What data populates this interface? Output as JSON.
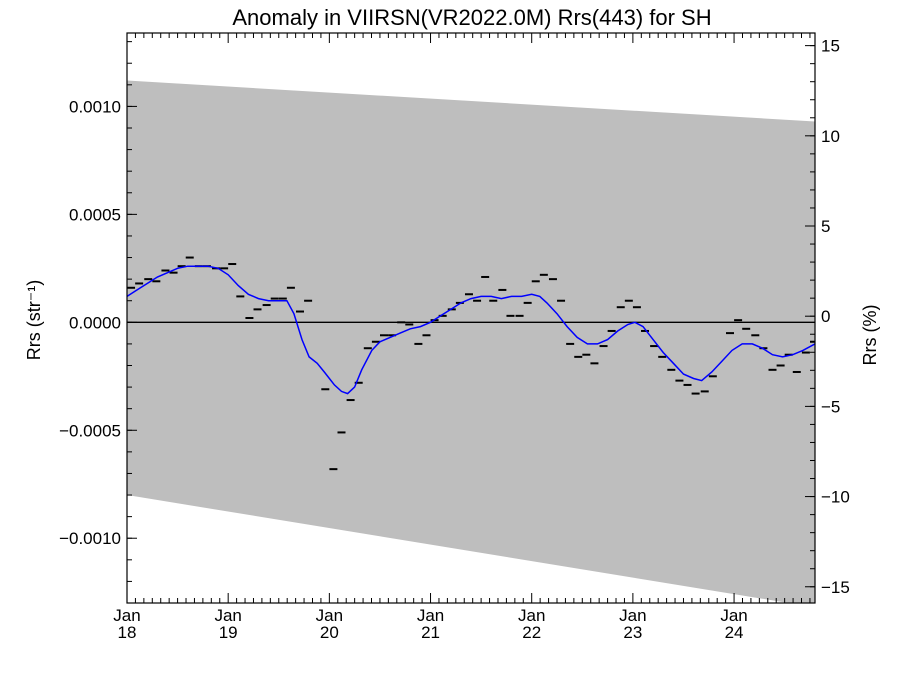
{
  "chart_data": {
    "type": "line",
    "title": "Anomaly in VIIRSN(VR2022.0M) Rrs(443) for SH",
    "ylabel": "Rrs (str⁻¹)",
    "y2label": "Rrs (%)",
    "x_range": [
      2018.0,
      2024.8
    ],
    "ylim": [
      -0.0013,
      0.00134
    ],
    "y2lim": [
      -15.9,
      15.7
    ],
    "y_ticks": [
      {
        "value": 0.001,
        "label": "0.0010"
      },
      {
        "value": 0.0005,
        "label": "0.0005"
      },
      {
        "value": 0.0,
        "label": "0.0000"
      },
      {
        "value": -0.0005,
        "label": "−0.0005"
      },
      {
        "value": -0.001,
        "label": "−0.0010"
      }
    ],
    "y2_ticks": [
      {
        "value": 15,
        "label": "15"
      },
      {
        "value": 10,
        "label": "10"
      },
      {
        "value": 5,
        "label": "5"
      },
      {
        "value": 0,
        "label": "0"
      },
      {
        "value": -5,
        "label": "−5"
      },
      {
        "value": -10,
        "label": "−10"
      },
      {
        "value": -15,
        "label": "−15"
      }
    ],
    "x_ticks": [
      {
        "value": 2018.0,
        "month": "Jan",
        "year": "18"
      },
      {
        "value": 2019.0,
        "month": "Jan",
        "year": "19"
      },
      {
        "value": 2020.0,
        "month": "Jan",
        "year": "20"
      },
      {
        "value": 2021.0,
        "month": "Jan",
        "year": "21"
      },
      {
        "value": 2022.0,
        "month": "Jan",
        "year": "22"
      },
      {
        "value": 2023.0,
        "month": "Jan",
        "year": "23"
      },
      {
        "value": 2024.0,
        "month": "Jan",
        "year": "24"
      }
    ],
    "band": {
      "color": "#bebebe",
      "upper": [
        [
          2018.0,
          0.00112
        ],
        [
          2024.8,
          0.00093
        ]
      ],
      "lower": [
        [
          2018.0,
          -0.0008
        ],
        [
          2024.8,
          -0.00132
        ]
      ]
    },
    "zero_line": 0,
    "series": [
      {
        "style": "markers",
        "color": "#000000",
        "points": [
          [
            2018.04,
            0.00016
          ],
          [
            2018.12,
            0.00018
          ],
          [
            2018.21,
            0.0002
          ],
          [
            2018.29,
            0.00019
          ],
          [
            2018.38,
            0.00024
          ],
          [
            2018.46,
            0.00023
          ],
          [
            2018.54,
            0.00026
          ],
          [
            2018.62,
            0.0003
          ],
          [
            2018.71,
            0.00026
          ],
          [
            2018.79,
            0.00026
          ],
          [
            2018.88,
            0.00025
          ],
          [
            2018.96,
            0.00025
          ],
          [
            2019.04,
            0.00027
          ],
          [
            2019.12,
            0.00012
          ],
          [
            2019.21,
            2e-05
          ],
          [
            2019.29,
            6e-05
          ],
          [
            2019.38,
            8e-05
          ],
          [
            2019.46,
            0.00011
          ],
          [
            2019.54,
            0.00011
          ],
          [
            2019.62,
            0.00016
          ],
          [
            2019.71,
            5e-05
          ],
          [
            2019.79,
            0.0001
          ],
          [
            2019.96,
            -0.00031
          ],
          [
            2020.04,
            -0.00068
          ],
          [
            2020.12,
            -0.00051
          ],
          [
            2020.21,
            -0.00036
          ],
          [
            2020.29,
            -0.00028
          ],
          [
            2020.38,
            -0.00012
          ],
          [
            2020.46,
            -9e-05
          ],
          [
            2020.54,
            -6e-05
          ],
          [
            2020.62,
            -6e-05
          ],
          [
            2020.71,
            0.0
          ],
          [
            2020.79,
            -1e-05
          ],
          [
            2020.88,
            -0.0001
          ],
          [
            2020.96,
            -6e-05
          ],
          [
            2021.04,
            1e-05
          ],
          [
            2021.12,
            3e-05
          ],
          [
            2021.21,
            6e-05
          ],
          [
            2021.29,
            9e-05
          ],
          [
            2021.38,
            0.00013
          ],
          [
            2021.46,
            0.0001
          ],
          [
            2021.54,
            0.00021
          ],
          [
            2021.62,
            0.0001
          ],
          [
            2021.71,
            0.00015
          ],
          [
            2021.79,
            3e-05
          ],
          [
            2021.88,
            3e-05
          ],
          [
            2021.96,
            9e-05
          ],
          [
            2022.04,
            0.00019
          ],
          [
            2022.12,
            0.00022
          ],
          [
            2022.21,
            0.0002
          ],
          [
            2022.29,
            0.0001
          ],
          [
            2022.38,
            -0.0001
          ],
          [
            2022.46,
            -0.00016
          ],
          [
            2022.54,
            -0.00015
          ],
          [
            2022.62,
            -0.00019
          ],
          [
            2022.71,
            -0.00011
          ],
          [
            2022.79,
            -4e-05
          ],
          [
            2022.88,
            7e-05
          ],
          [
            2022.96,
            0.0001
          ],
          [
            2023.04,
            7e-05
          ],
          [
            2023.12,
            -4e-05
          ],
          [
            2023.21,
            -0.00011
          ],
          [
            2023.29,
            -0.00016
          ],
          [
            2023.38,
            -0.00022
          ],
          [
            2023.46,
            -0.00027
          ],
          [
            2023.54,
            -0.00029
          ],
          [
            2023.62,
            -0.00033
          ],
          [
            2023.71,
            -0.00032
          ],
          [
            2023.79,
            -0.00025
          ],
          [
            2023.96,
            -5e-05
          ],
          [
            2024.04,
            1e-05
          ],
          [
            2024.12,
            -3e-05
          ],
          [
            2024.21,
            -6e-05
          ],
          [
            2024.29,
            -0.00012
          ],
          [
            2024.38,
            -0.00022
          ],
          [
            2024.46,
            -0.0002
          ],
          [
            2024.54,
            -0.00015
          ],
          [
            2024.62,
            -0.00023
          ],
          [
            2024.71,
            -0.00014
          ],
          [
            2024.79,
            -9e-05
          ]
        ]
      },
      {
        "style": "line",
        "color": "#0000ff",
        "points": [
          [
            2018.0,
            0.00012
          ],
          [
            2018.1,
            0.00015
          ],
          [
            2018.2,
            0.00018
          ],
          [
            2018.3,
            0.00021
          ],
          [
            2018.4,
            0.00023
          ],
          [
            2018.5,
            0.00025
          ],
          [
            2018.6,
            0.00026
          ],
          [
            2018.7,
            0.00026
          ],
          [
            2018.8,
            0.00026
          ],
          [
            2018.9,
            0.00025
          ],
          [
            2019.0,
            0.00022
          ],
          [
            2019.1,
            0.00017
          ],
          [
            2019.2,
            0.00013
          ],
          [
            2019.3,
            0.00011
          ],
          [
            2019.4,
            0.0001
          ],
          [
            2019.5,
            0.0001
          ],
          [
            2019.58,
            0.0001
          ],
          [
            2019.65,
            4e-05
          ],
          [
            2019.73,
            -8e-05
          ],
          [
            2019.8,
            -0.00016
          ],
          [
            2019.88,
            -0.00019
          ],
          [
            2019.95,
            -0.00023
          ],
          [
            2020.05,
            -0.00029
          ],
          [
            2020.12,
            -0.00032
          ],
          [
            2020.18,
            -0.00033
          ],
          [
            2020.25,
            -0.0003
          ],
          [
            2020.32,
            -0.00022
          ],
          [
            2020.42,
            -0.00013
          ],
          [
            2020.5,
            -9e-05
          ],
          [
            2020.6,
            -7e-05
          ],
          [
            2020.7,
            -5e-05
          ],
          [
            2020.8,
            -3e-05
          ],
          [
            2020.9,
            -2e-05
          ],
          [
            2021.0,
            0.0
          ],
          [
            2021.1,
            3e-05
          ],
          [
            2021.2,
            6e-05
          ],
          [
            2021.3,
            9e-05
          ],
          [
            2021.4,
            0.00011
          ],
          [
            2021.5,
            0.00012
          ],
          [
            2021.6,
            0.00012
          ],
          [
            2021.7,
            0.00011
          ],
          [
            2021.8,
            0.00012
          ],
          [
            2021.9,
            0.00012
          ],
          [
            2022.0,
            0.00013
          ],
          [
            2022.08,
            0.00012
          ],
          [
            2022.15,
            9e-05
          ],
          [
            2022.25,
            4e-05
          ],
          [
            2022.35,
            -2e-05
          ],
          [
            2022.45,
            -7e-05
          ],
          [
            2022.55,
            -0.0001
          ],
          [
            2022.65,
            -0.0001
          ],
          [
            2022.75,
            -8e-05
          ],
          [
            2022.85,
            -4e-05
          ],
          [
            2022.95,
            -1e-05
          ],
          [
            2023.02,
            0.0
          ],
          [
            2023.1,
            -2e-05
          ],
          [
            2023.2,
            -8e-05
          ],
          [
            2023.3,
            -0.00014
          ],
          [
            2023.4,
            -0.00019
          ],
          [
            2023.5,
            -0.00024
          ],
          [
            2023.6,
            -0.00026
          ],
          [
            2023.68,
            -0.00027
          ],
          [
            2023.78,
            -0.00023
          ],
          [
            2023.88,
            -0.00018
          ],
          [
            2023.98,
            -0.00013
          ],
          [
            2024.08,
            -0.0001
          ],
          [
            2024.18,
            -0.0001
          ],
          [
            2024.28,
            -0.00012
          ],
          [
            2024.38,
            -0.00015
          ],
          [
            2024.48,
            -0.00016
          ],
          [
            2024.58,
            -0.00015
          ],
          [
            2024.68,
            -0.00013
          ],
          [
            2024.8,
            -0.0001
          ]
        ]
      }
    ]
  }
}
